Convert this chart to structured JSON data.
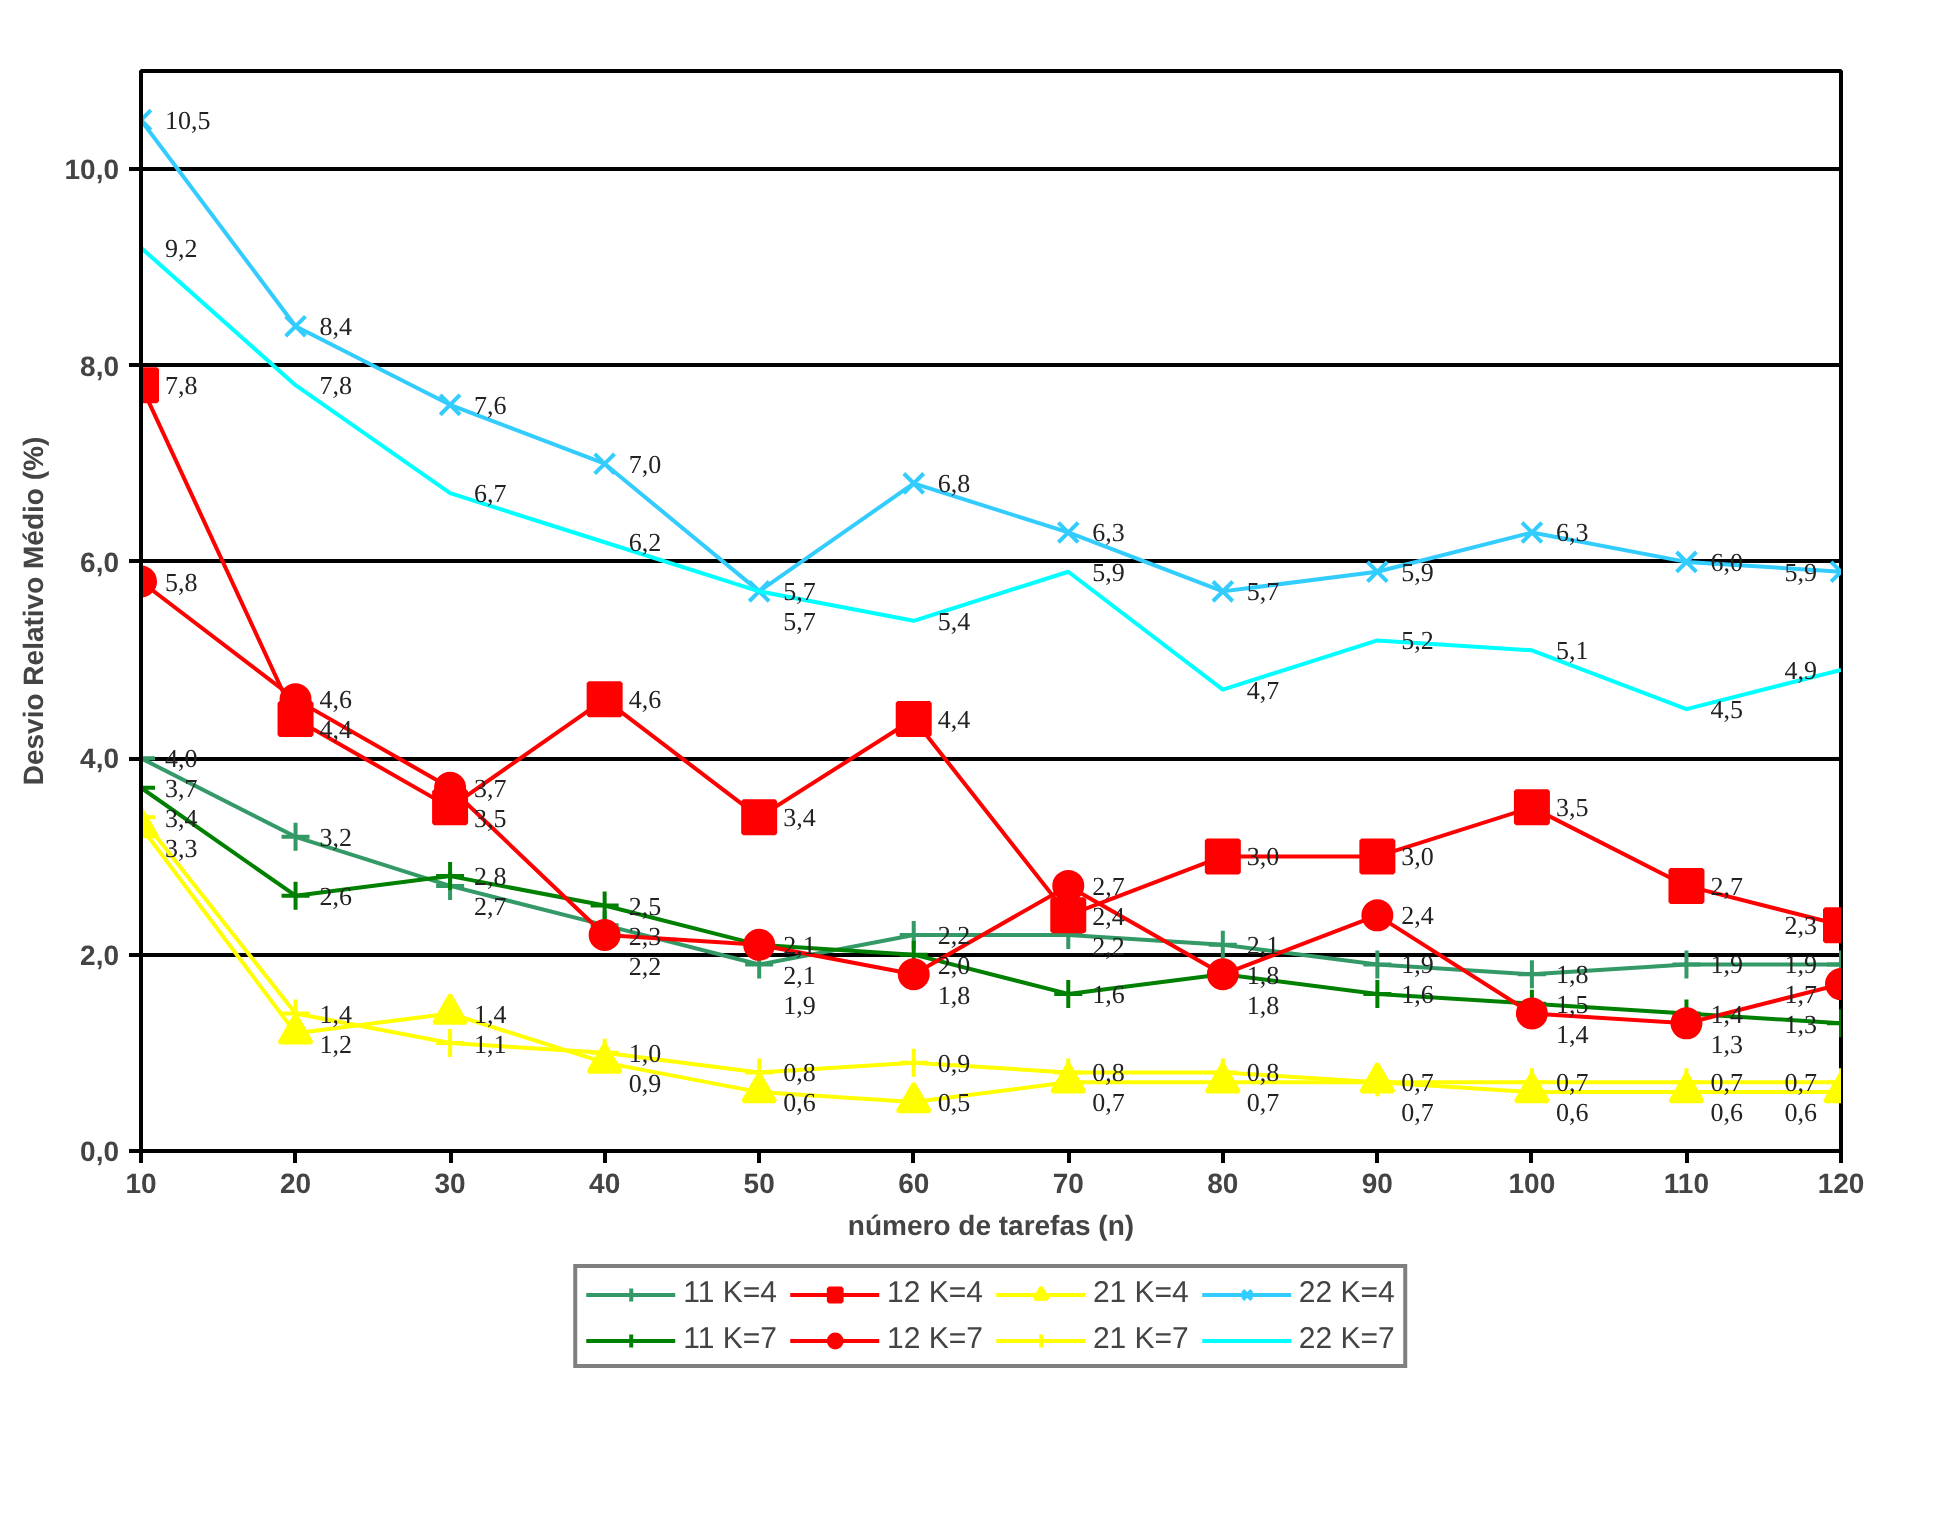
{
  "chart_data": {
    "type": "line",
    "xlabel": "número de tarefas (n)",
    "ylabel": "Desvio Relativo Médio (%)",
    "x": [
      10,
      20,
      30,
      40,
      50,
      60,
      70,
      80,
      90,
      100,
      110,
      120
    ],
    "xlim": [
      10,
      120
    ],
    "xticks": [
      10,
      20,
      30,
      40,
      50,
      60,
      70,
      80,
      90,
      100,
      110,
      120
    ],
    "ylim": [
      0,
      11
    ],
    "yticks": [
      {
        "value": 0,
        "label": "0,0"
      },
      {
        "value": 2,
        "label": "2,0"
      },
      {
        "value": 4,
        "label": "4,0"
      },
      {
        "value": 6,
        "label": "6,0"
      },
      {
        "value": 8,
        "label": "8,0"
      },
      {
        "value": 10,
        "label": "10,0"
      }
    ],
    "grid": "y",
    "legend": "bottom",
    "series": [
      {
        "name": "11 K=4",
        "color": "#339966",
        "marker": "cross",
        "values": [
          4.0,
          3.2,
          2.7,
          2.3,
          1.9,
          2.2,
          2.2,
          2.1,
          1.9,
          1.8,
          1.9,
          1.9
        ],
        "value_labels": [
          "4,0",
          "3,2",
          "2,7",
          "2,3",
          "1,9",
          "2,2",
          "2,2",
          "2,1",
          "1,9",
          "1,8",
          "1,9",
          "1,9"
        ]
      },
      {
        "name": "11 K=7",
        "color": "#008000",
        "marker": "cross",
        "values": [
          3.7,
          2.6,
          2.8,
          2.5,
          2.1,
          2.0,
          1.6,
          1.8,
          1.6,
          1.5,
          1.4,
          1.3
        ],
        "value_labels": [
          "3,7",
          "2,6",
          "2,8",
          "2,5",
          "2,1",
          "2,0",
          "1,6",
          "1,8",
          "1,6",
          "1,5",
          "1,4",
          "1,3"
        ]
      },
      {
        "name": "12 K=4",
        "color": "#ff0000",
        "marker": "square",
        "values": [
          7.8,
          4.4,
          3.5,
          4.6,
          3.4,
          4.4,
          2.4,
          3.0,
          3.0,
          3.5,
          2.7,
          2.3
        ],
        "value_labels": [
          "7,8",
          "4,4",
          "3,5",
          "4,6",
          "3,4",
          "4,4",
          "2,4",
          "3,0",
          "3,0",
          "3,5",
          "2,7",
          "2,3"
        ]
      },
      {
        "name": "12 K=7",
        "color": "#ff0000",
        "marker": "circle",
        "values": [
          5.8,
          4.6,
          3.7,
          2.2,
          2.1,
          1.8,
          2.7,
          1.8,
          2.4,
          1.4,
          1.3,
          1.7
        ],
        "value_labels": [
          "5,8",
          "4,6",
          "3,7",
          "2,2",
          "2,1",
          "1,8",
          "2,7",
          "1,8",
          "2,4",
          "1,4",
          "1,3",
          "1,7"
        ]
      },
      {
        "name": "21 K=4",
        "color": "#ffff00",
        "marker": "triangle",
        "values": [
          3.3,
          1.2,
          1.4,
          0.9,
          0.6,
          0.5,
          0.7,
          0.7,
          0.7,
          0.6,
          0.6,
          0.6
        ],
        "value_labels": [
          "3,3",
          "1,2",
          "1,4",
          "0,9",
          "0,6",
          "0,5",
          "0,7",
          "0,7",
          "0,7",
          "0,6",
          "0,6",
          "0,6"
        ]
      },
      {
        "name": "21 K=7",
        "color": "#ffff00",
        "marker": "cross",
        "values": [
          3.4,
          1.4,
          1.1,
          1.0,
          0.8,
          0.9,
          0.8,
          0.8,
          0.7,
          0.7,
          0.7,
          0.7
        ],
        "value_labels": [
          "3,4",
          "1,4",
          "1,1",
          "1,0",
          "0,8",
          "0,9",
          "0,8",
          "0,8",
          "0,7",
          "0,7",
          "0,7",
          "0,7"
        ]
      },
      {
        "name": "22 K=4",
        "color": "#33ccff",
        "marker": "x",
        "values": [
          10.5,
          8.4,
          7.6,
          7.0,
          5.7,
          6.8,
          6.3,
          5.7,
          5.9,
          6.3,
          6.0,
          5.9
        ],
        "value_labels": [
          "10,5",
          "8,4",
          "7,6",
          "7,0",
          "5,7",
          "6,8",
          "6,3",
          "5,7",
          "5,9",
          "6,3",
          "6,0",
          "5,9"
        ]
      },
      {
        "name": "22 K=7",
        "color": "#00ffff",
        "marker": "none",
        "values": [
          9.2,
          7.8,
          6.7,
          6.2,
          5.7,
          5.4,
          5.9,
          4.7,
          5.2,
          5.1,
          4.5,
          4.9
        ],
        "value_labels": [
          "9,2",
          "7,8",
          "6,7",
          "6,2",
          "5,7",
          "5,4",
          "5,9",
          "4,7",
          "5,2",
          "5,1",
          "4,5",
          "4,9"
        ]
      }
    ]
  }
}
